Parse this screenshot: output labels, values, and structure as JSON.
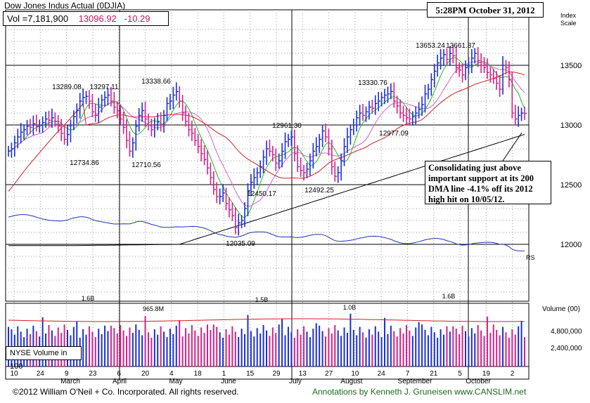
{
  "header": {
    "title": "Dow Jones Indus Actual  (0DJIA)",
    "vol_label": "Vol =7,181,900",
    "last_price": "13096.92",
    "change": "-10.29",
    "timestamp": "5:28PM October 31, 2012",
    "scale_label_1": "Index",
    "scale_label_2": "Scale"
  },
  "annotation": "Consolidating just above important support at its 200 DMA line -4.1% off its 2012 high hit on 10/05/12.",
  "volume_panel": {
    "label": "Volume (00)",
    "ticks": [
      "4,800,000",
      "2,400,000"
    ],
    "nyse_label": "NYSE Volume in 100",
    "peak_labels": [
      "1.6B",
      "965.8M",
      "1.5B",
      "1.0B",
      "1.6B"
    ]
  },
  "footer": {
    "copyright": "©2012 William O'Neil + Co. Incorporated. All rights reserved.",
    "credits": "Annotations by Kenneth J. Gruneisen www.CANSLIM.net"
  },
  "colors": {
    "up_bar": "#1a2fd6",
    "down_bar": "#d6208c",
    "ma50": "#cc2020",
    "ma10": "#22bb22",
    "ma21": "#cc66cc",
    "ma200": "#000000",
    "rs_line": "#2233aa"
  },
  "chart_data": {
    "type": "ohlc-bar",
    "ylim": [
      11550,
      13900
    ],
    "yticks": [
      12000,
      12500,
      13000,
      13500
    ],
    "x_labels": [
      "10",
      "24",
      "9",
      "23",
      "6",
      "20",
      "4",
      "18",
      "1",
      "15",
      "29",
      "13",
      "27",
      "10",
      "24",
      "7",
      "21",
      "5",
      "19",
      "2"
    ],
    "month_labels": [
      "March",
      "April",
      "May",
      "June",
      "July",
      "August",
      "September",
      "October"
    ],
    "price_labels": [
      {
        "text": "12734.86",
        "value": 12734.86
      },
      {
        "text": "13289.08",
        "value": 13289.08
      },
      {
        "text": "13297.11",
        "value": 13297.11
      },
      {
        "text": "12710.56",
        "value": 12710.56
      },
      {
        "text": "13338.66",
        "value": 13338.66
      },
      {
        "text": "12035.09",
        "value": 12035.09
      },
      {
        "text": "12450.17",
        "value": 12450.17
      },
      {
        "text": "12961.30",
        "value": 12961.3
      },
      {
        "text": "12492.25",
        "value": 12492.25
      },
      {
        "text": "13330.76",
        "value": 13330.76
      },
      {
        "text": "12977.09",
        "value": 12977.09
      },
      {
        "text": "13653.24",
        "value": 13653.24
      },
      {
        "text": "13661.87",
        "value": 13661.87
      }
    ],
    "rs_label": "RS",
    "closes": [
      12780,
      12800,
      12850,
      12900,
      12940,
      12960,
      12990,
      12980,
      13010,
      12990,
      13000,
      13020,
      13050,
      13040,
      13060,
      13030,
      12990,
      12930,
      12880,
      12920,
      13000,
      13070,
      13120,
      13200,
      13230,
      13240,
      13200,
      13110,
      13080,
      13150,
      13210,
      13230,
      13250,
      13200,
      13150,
      13120,
      13050,
      12980,
      12870,
      12780,
      12850,
      12990,
      13080,
      13120,
      13050,
      13000,
      12960,
      13000,
      13030,
      13000,
      13080,
      13180,
      13200,
      13250,
      13280,
      13200,
      13100,
      13030,
      12960,
      12930,
      12870,
      12820,
      12760,
      12710,
      12640,
      12560,
      12460,
      12400,
      12400,
      12430,
      12340,
      12290,
      12240,
      12140,
      12180,
      12200,
      12300,
      12450,
      12520,
      12560,
      12600,
      12650,
      12730,
      12800,
      12780,
      12750,
      12680,
      12700,
      12780,
      12860,
      12880,
      12900,
      12760,
      12650,
      12620,
      12600,
      12630,
      12700,
      12780,
      12820,
      12880,
      12950,
      12900,
      12800,
      12650,
      12570,
      12600,
      12700,
      12820,
      12900,
      12960,
      13000,
      13060,
      13100,
      13080,
      13110,
      13150,
      13140,
      13180,
      13200,
      13230,
      13250,
      13260,
      13280,
      13200,
      13160,
      13100,
      13080,
      13060,
      13050,
      13070,
      13100,
      13130,
      13170,
      13260,
      13300,
      13380,
      13450,
      13520,
      13560,
      13590,
      13550,
      13600,
      13580,
      13480,
      13460,
      13420,
      13480,
      13500,
      13560,
      13600,
      13540,
      13500,
      13480,
      13440,
      13420,
      13390,
      13350,
      13300,
      13500,
      13480,
      13380,
      13100,
      13050,
      13080,
      13100,
      13097
    ]
  }
}
